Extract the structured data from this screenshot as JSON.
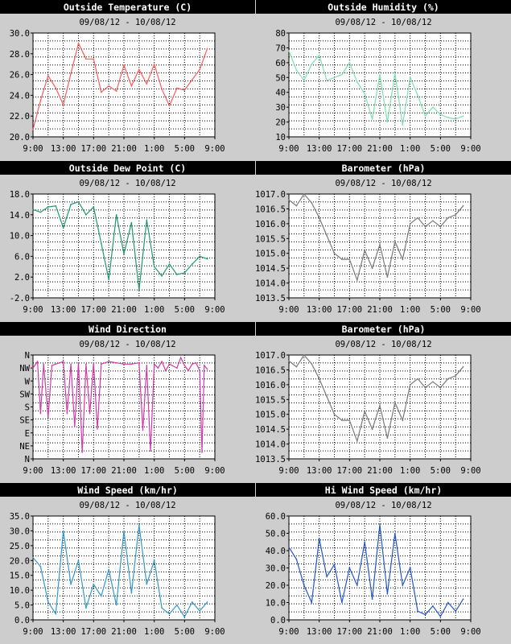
{
  "chart_data": [
    {
      "type": "line",
      "title": "Outside Temperature (C)",
      "subtitle": "09/08/12 - 10/08/12",
      "color": "#ff5a5a",
      "ylim": [
        20.0,
        30.0
      ],
      "yticks": [
        "20.0",
        "22.0",
        "24.0",
        "26.0",
        "28.0",
        "30.0"
      ],
      "xticks": [
        "9:00",
        "13:00",
        "17:00",
        "21:00",
        "1:00",
        "5:00",
        "9:00"
      ],
      "x": [
        0,
        1,
        2,
        3,
        4,
        5,
        6,
        7,
        8,
        9,
        10,
        11,
        12,
        13,
        14,
        15,
        16,
        17,
        18,
        19,
        20,
        21,
        22,
        23
      ],
      "values": [
        20.7,
        23.5,
        25.9,
        24.7,
        23.1,
        26.1,
        29.0,
        27.5,
        27.5,
        24.3,
        24.9,
        24.4,
        26.9,
        24.9,
        26.5,
        25.1,
        27.0,
        24.6,
        23.0,
        24.7,
        24.5,
        25.5,
        26.5,
        28.5
      ]
    },
    {
      "type": "line",
      "title": "Outside Humidity (%)",
      "subtitle": "09/08/12 - 10/08/12",
      "color": "#7fe0b0",
      "ylim": [
        10,
        80
      ],
      "yticks": [
        "10",
        "20",
        "30",
        "40",
        "50",
        "60",
        "70",
        "80"
      ],
      "xticks": [
        "9:00",
        "13:00",
        "17:00",
        "21:00",
        "1:00",
        "5:00",
        "9:00"
      ],
      "x": [
        0,
        1,
        2,
        3,
        4,
        5,
        6,
        7,
        8,
        9,
        10,
        11,
        12,
        13,
        14,
        15,
        16,
        17,
        18,
        19,
        20,
        21,
        22,
        23
      ],
      "values": [
        68,
        55,
        48,
        59,
        65,
        48,
        50,
        52,
        60,
        47,
        39,
        22,
        52,
        20,
        53,
        18,
        50,
        38,
        24,
        30,
        25,
        23,
        22,
        24
      ]
    },
    {
      "type": "line",
      "title": "Outside Dew Point (C)",
      "subtitle": "09/08/12 - 10/08/12",
      "color": "#1f9a6c",
      "ylim": [
        -2.0,
        18.0
      ],
      "yticks": [
        "-2.0",
        "2.0",
        "6.0",
        "10.0",
        "14.0",
        "18.0"
      ],
      "xticks": [
        "9:00",
        "13:00",
        "17:00",
        "21:00",
        "1:00",
        "5:00",
        "9:00"
      ],
      "x": [
        0,
        1,
        2,
        3,
        4,
        5,
        6,
        7,
        8,
        9,
        10,
        11,
        12,
        13,
        14,
        15,
        16,
        17,
        18,
        19,
        20,
        21,
        22,
        23
      ],
      "values": [
        15.0,
        14.5,
        15.5,
        15.7,
        11.5,
        16.0,
        16.5,
        14.0,
        15.5,
        8.5,
        1.5,
        14.0,
        6.5,
        12.5,
        -0.5,
        13.0,
        4.0,
        2.2,
        4.5,
        2.5,
        2.8,
        4.5,
        6.0,
        5.5
      ]
    },
    {
      "type": "line",
      "title": "Barometer (hPa)",
      "subtitle": "09/08/12 - 10/08/12",
      "color": "#7a7a7a",
      "ylim": [
        1013.5,
        1017.0
      ],
      "yticks": [
        "1013.5",
        "1014.0",
        "1014.5",
        "1015.0",
        "1015.5",
        "1016.0",
        "1016.5",
        "1017.0"
      ],
      "xticks": [
        "9:00",
        "13:00",
        "17:00",
        "21:00",
        "1:00",
        "5:00",
        "9:00"
      ],
      "x": [
        0,
        1,
        2,
        3,
        4,
        5,
        6,
        7,
        8,
        9,
        10,
        11,
        12,
        13,
        14,
        15,
        16,
        17,
        18,
        19,
        20,
        21,
        22,
        23
      ],
      "values": [
        1016.8,
        1016.6,
        1017.0,
        1016.7,
        1016.2,
        1015.6,
        1015.0,
        1014.8,
        1014.8,
        1014.1,
        1015.1,
        1014.5,
        1015.3,
        1014.2,
        1015.4,
        1014.8,
        1016.0,
        1016.2,
        1015.9,
        1016.1,
        1015.9,
        1016.2,
        1016.3,
        1016.6
      ]
    },
    {
      "type": "line",
      "title": "Wind Direction",
      "subtitle": "09/08/12 - 10/08/12",
      "color": "#d23aaa",
      "ylim": [
        0,
        8
      ],
      "yticks": [
        "N",
        "NE",
        "E",
        "SE",
        "S",
        "SW",
        "W",
        "NW",
        "N"
      ],
      "xticks": [
        "9:00",
        "13:00",
        "17:00",
        "21:00",
        "1:00",
        "5:00",
        "9:00"
      ],
      "x": [
        0,
        0.6,
        1,
        1.4,
        2,
        2.5,
        3,
        3.5,
        4,
        4.5,
        5,
        5.5,
        6,
        6.5,
        7,
        7.5,
        8,
        8.5,
        9,
        10,
        11,
        12,
        13,
        14,
        14.5,
        15,
        15.5,
        16,
        16.5,
        17,
        17.5,
        18,
        19,
        19.5,
        20,
        20.5,
        21,
        21.5,
        22,
        22.3,
        22.6,
        23
      ],
      "values": [
        7.0,
        7.5,
        3.5,
        7.3,
        3.2,
        7.2,
        7.3,
        7.4,
        7.5,
        3.5,
        7.3,
        2.5,
        7.4,
        0.5,
        7.3,
        3.5,
        7.4,
        2.3,
        7.3,
        7.5,
        7.4,
        7.3,
        7.3,
        7.4,
        2.2,
        7.2,
        0.6,
        7.3,
        7.0,
        7.5,
        6.8,
        7.3,
        7.0,
        7.8,
        7.2,
        6.8,
        7.3,
        7.4,
        6.8,
        0.5,
        7.2,
        6.9
      ]
    },
    {
      "type": "line",
      "title": "Barometer (hPa)",
      "subtitle": "09/08/12 - 10/08/12",
      "color": "#7a7a7a",
      "ylim": [
        1013.5,
        1017.0
      ],
      "yticks": [
        "1013.5",
        "1014.0",
        "1014.5",
        "1015.0",
        "1015.5",
        "1016.0",
        "1016.5",
        "1017.0"
      ],
      "xticks": [
        "9:00",
        "13:00",
        "17:00",
        "21:00",
        "1:00",
        "5:00",
        "9:00"
      ],
      "x": [
        0,
        1,
        2,
        3,
        4,
        5,
        6,
        7,
        8,
        9,
        10,
        11,
        12,
        13,
        14,
        15,
        16,
        17,
        18,
        19,
        20,
        21,
        22,
        23
      ],
      "values": [
        1016.8,
        1016.6,
        1017.0,
        1016.7,
        1016.2,
        1015.6,
        1015.0,
        1014.8,
        1014.8,
        1014.1,
        1015.1,
        1014.5,
        1015.3,
        1014.2,
        1015.4,
        1014.8,
        1016.0,
        1016.2,
        1015.9,
        1016.1,
        1015.9,
        1016.2,
        1016.3,
        1016.6
      ]
    },
    {
      "type": "line",
      "title": "Wind Speed (km/hr)",
      "subtitle": "09/08/12 - 10/08/12",
      "color": "#3399cc",
      "ylim": [
        0.0,
        35.0
      ],
      "yticks": [
        "0.0",
        "5.0",
        "10.0",
        "15.0",
        "20.0",
        "25.0",
        "30.0",
        "35.0"
      ],
      "xticks": [
        "9:00",
        "13:00",
        "17:00",
        "21:00",
        "1:00",
        "5:00",
        "9:00"
      ],
      "x": [
        0,
        1,
        2,
        3,
        4,
        5,
        6,
        7,
        8,
        9,
        10,
        11,
        12,
        13,
        14,
        15,
        16,
        17,
        18,
        19,
        20,
        21,
        22,
        23
      ],
      "values": [
        21,
        18,
        6,
        2,
        30,
        12,
        20,
        4,
        12,
        8,
        17,
        5,
        30,
        9,
        32,
        12,
        20,
        4,
        2,
        5,
        1,
        6,
        3,
        6
      ]
    },
    {
      "type": "line",
      "title": "Hi Wind Speed (km/hr)",
      "subtitle": "09/08/12 - 10/08/12",
      "color": "#2255cc",
      "ylim": [
        0.0,
        60.0
      ],
      "yticks": [
        "0.0",
        "10.0",
        "20.0",
        "30.0",
        "40.0",
        "50.0",
        "60.0"
      ],
      "xticks": [
        "9:00",
        "13:00",
        "17:00",
        "21:00",
        "1:00",
        "5:00",
        "9:00"
      ],
      "x": [
        0,
        1,
        2,
        3,
        4,
        5,
        6,
        7,
        8,
        9,
        10,
        11,
        12,
        13,
        14,
        15,
        16,
        17,
        18,
        19,
        20,
        21,
        22,
        23
      ],
      "values": [
        42,
        35,
        20,
        10,
        47,
        25,
        32,
        10,
        30,
        20,
        45,
        12,
        55,
        15,
        50,
        20,
        30,
        5,
        3,
        8,
        2,
        10,
        5,
        12
      ]
    }
  ]
}
